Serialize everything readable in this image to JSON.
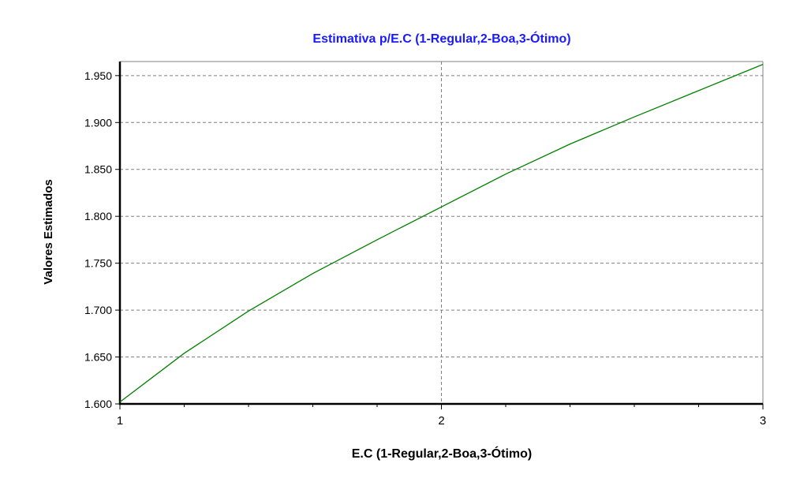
{
  "chart_data": {
    "type": "line",
    "title": "Estimativa p/E.C (1-Regular,2-Boa,3-Ótimo)",
    "xlabel": "E.C (1-Regular,2-Boa,3-Ótimo)",
    "ylabel": "Valores Estimados",
    "xlim": [
      1,
      3
    ],
    "ylim": [
      1.6,
      1.965
    ],
    "x_ticks": [
      "1",
      "2",
      "3"
    ],
    "y_ticks": [
      "1.600",
      "1.650",
      "1.700",
      "1.750",
      "1.800",
      "1.850",
      "1.900",
      "1.950"
    ],
    "grid": true,
    "series": [
      {
        "x": [
          1.0,
          1.2,
          1.4,
          1.6,
          1.8,
          2.0,
          2.2,
          2.4,
          2.6,
          2.8,
          3.0
        ],
        "y": [
          1.602,
          1.654,
          1.699,
          1.739,
          1.775,
          1.81,
          1.845,
          1.877,
          1.906,
          1.934,
          1.962
        ]
      }
    ],
    "colors": {
      "title": "#1a1aff",
      "line": "#008000",
      "grid": "#808080",
      "axis": "#000000"
    }
  }
}
